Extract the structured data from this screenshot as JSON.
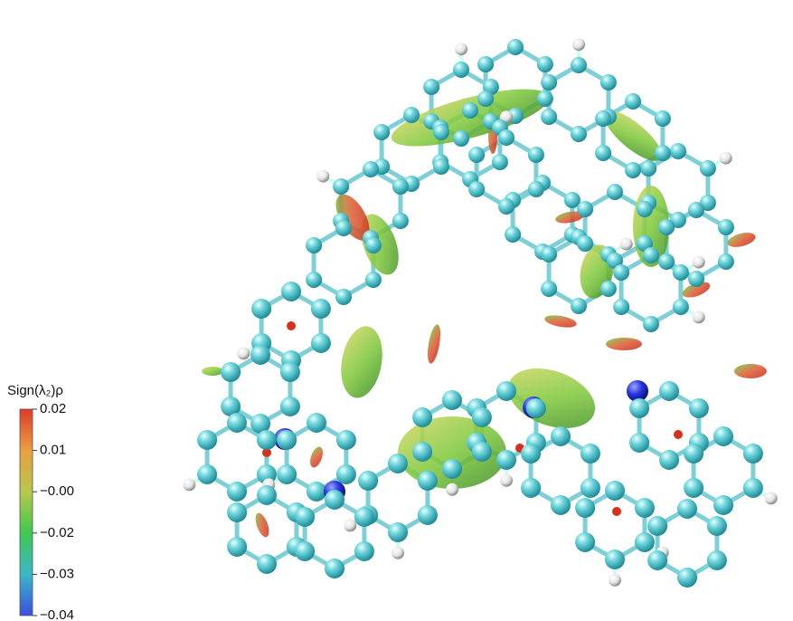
{
  "chart_data": {
    "type": "colorbar",
    "title": "Sign(λ₂)ρ",
    "colormap": [
      "#e03a2a",
      "#e8a040",
      "#b8c84a",
      "#3ec850",
      "#3ab8c8",
      "#3a50e0"
    ],
    "ylim": [
      -0.04,
      0.02
    ],
    "yticks": [
      {
        "value": 0.02,
        "label": "0.02"
      },
      {
        "value": 0.008,
        "label": "0.01"
      },
      {
        "value": -0.004,
        "label": "−0.00"
      },
      {
        "value": -0.016,
        "label": "−0.02"
      },
      {
        "value": -0.028,
        "label": "−0.03"
      },
      {
        "value": -0.04,
        "label": "−0.04"
      }
    ]
  }
}
